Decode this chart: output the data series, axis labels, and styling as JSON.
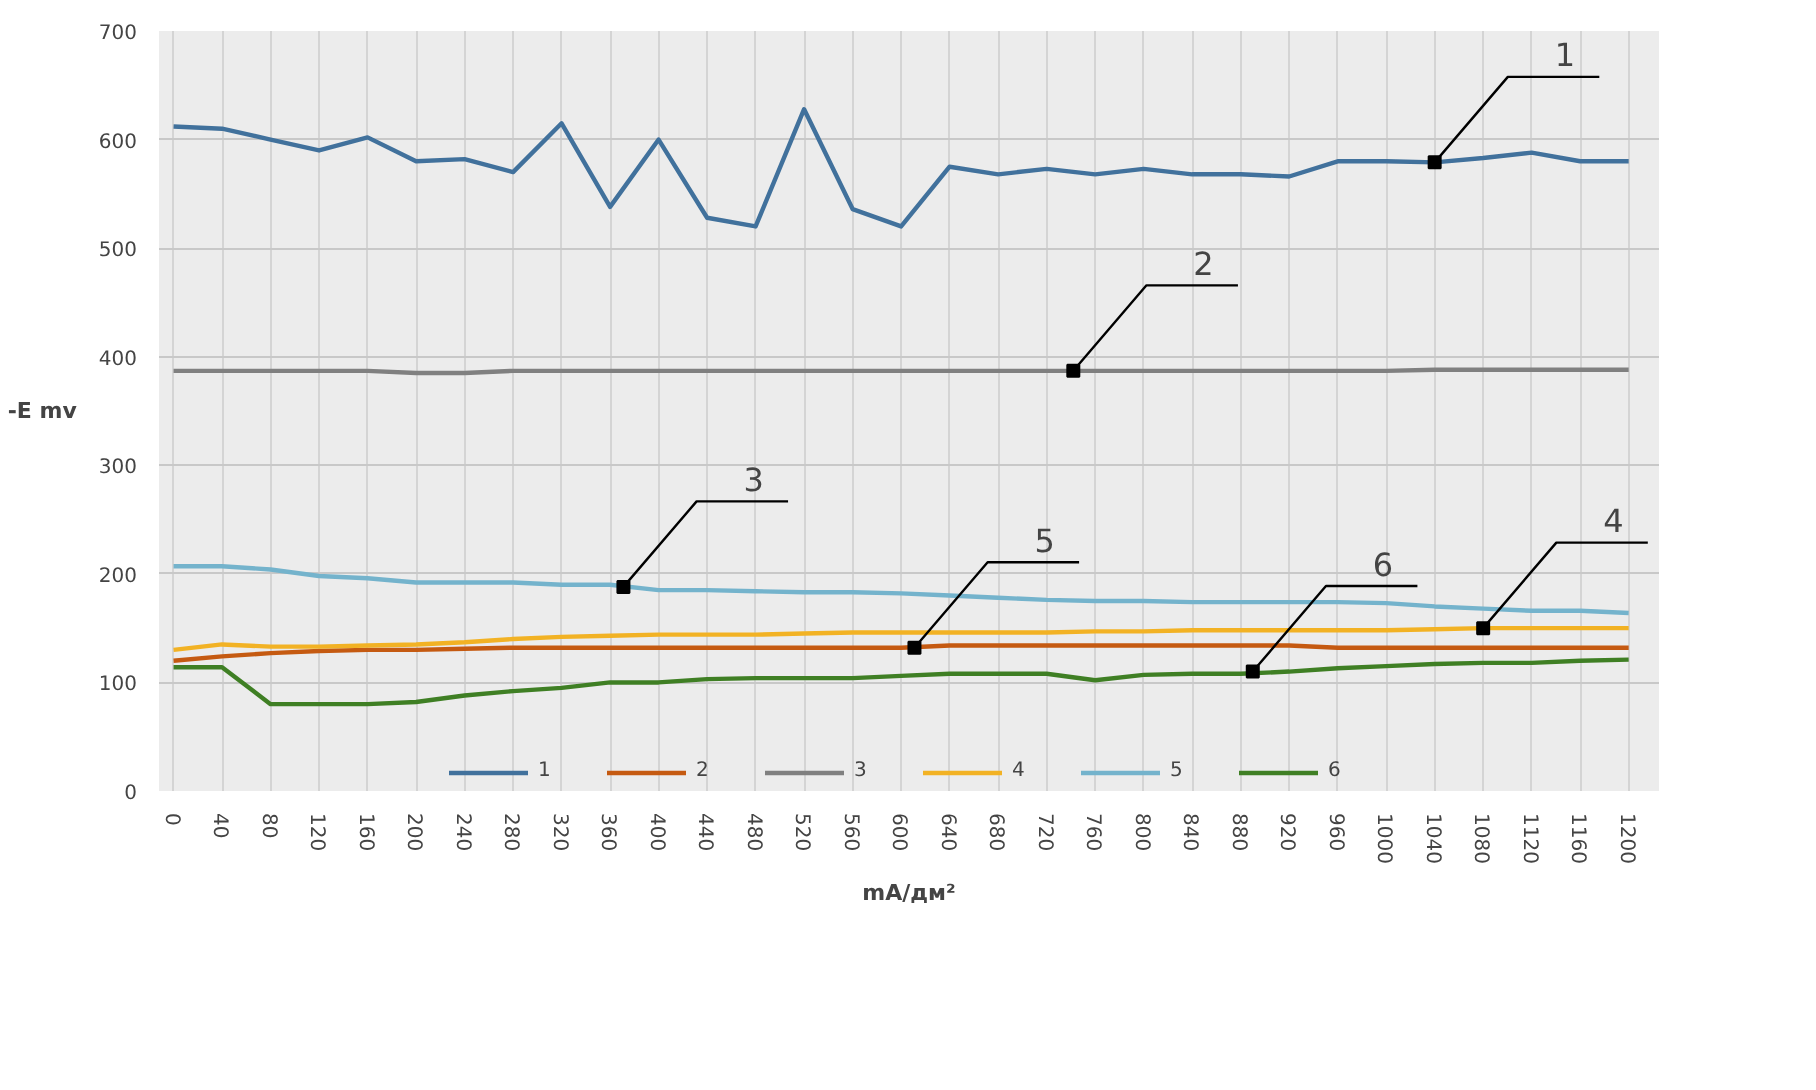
{
  "chart_data": {
    "type": "line",
    "xlabel": "mA/дм²",
    "ylabel": "-E mv",
    "x": [
      0,
      40,
      80,
      120,
      160,
      200,
      240,
      280,
      320,
      360,
      400,
      440,
      480,
      520,
      560,
      600,
      640,
      680,
      720,
      760,
      800,
      840,
      880,
      920,
      960,
      1000,
      1040,
      1080,
      1120,
      1160,
      1200
    ],
    "xlim": [
      -12,
      1225
    ],
    "xticks": [
      0,
      40,
      80,
      120,
      160,
      200,
      240,
      280,
      320,
      360,
      400,
      440,
      480,
      520,
      560,
      600,
      640,
      680,
      720,
      760,
      800,
      840,
      880,
      920,
      960,
      1000,
      1040,
      1080,
      1120,
      1160,
      1200
    ],
    "ylim": [
      0,
      700
    ],
    "yticks": [
      0,
      100,
      200,
      300,
      400,
      500,
      600,
      700
    ],
    "grid": true,
    "legend": "bottom",
    "marker": "none",
    "line_style": "solid",
    "series": [
      {
        "name": "1",
        "color": "#41719c",
        "values": [
          612,
          610,
          600,
          590,
          602,
          580,
          582,
          570,
          615,
          538,
          600,
          528,
          520,
          628,
          536,
          520,
          575,
          568,
          573,
          568,
          573,
          568,
          568,
          566,
          580,
          580,
          579,
          583,
          588,
          580,
          580
        ]
      },
      {
        "name": "2",
        "color": "#c55a11",
        "values": [
          120,
          124,
          127,
          129,
          130,
          130,
          131,
          132,
          132,
          132,
          132,
          132,
          132,
          132,
          132,
          132,
          134,
          134,
          134,
          134,
          134,
          134,
          134,
          134,
          132,
          132,
          132,
          132,
          132,
          132,
          132
        ]
      },
      {
        "name": "3",
        "color": "#808080",
        "values": [
          387,
          387,
          387,
          387,
          387,
          385,
          385,
          387,
          387,
          387,
          387,
          387,
          387,
          387,
          387,
          387,
          387,
          387,
          387,
          387,
          387,
          387,
          387,
          387,
          387,
          387,
          388,
          388,
          388,
          388,
          388
        ]
      },
      {
        "name": "4",
        "color": "#f2b224",
        "values": [
          130,
          135,
          133,
          133,
          134,
          135,
          137,
          140,
          142,
          143,
          144,
          144,
          144,
          145,
          146,
          146,
          146,
          146,
          146,
          147,
          147,
          148,
          148,
          148,
          148,
          148,
          149,
          150,
          150,
          150,
          150
        ]
      },
      {
        "name": "5",
        "color": "#74b3cc",
        "values": [
          207,
          207,
          204,
          198,
          196,
          192,
          192,
          192,
          190,
          190,
          185,
          185,
          184,
          183,
          183,
          182,
          180,
          178,
          176,
          175,
          175,
          174,
          174,
          174,
          174,
          173,
          170,
          168,
          166,
          166,
          164
        ]
      },
      {
        "name": "6",
        "color": "#3f7f24",
        "values": [
          114,
          114,
          80,
          80,
          80,
          82,
          88,
          92,
          95,
          100,
          100,
          103,
          104,
          104,
          104,
          106,
          108,
          108,
          108,
          102,
          107,
          108,
          108,
          110,
          113,
          115,
          117,
          118,
          118,
          120,
          121
        ]
      }
    ],
    "annotations": [
      {
        "text": "1",
        "x": 1040,
        "y": 579
      },
      {
        "text": "2",
        "x": 742,
        "y": 387
      },
      {
        "text": "3",
        "x": 371,
        "y": 188
      },
      {
        "text": "5",
        "x": 611,
        "y": 132
      },
      {
        "text": "6",
        "x": 890,
        "y": 110
      },
      {
        "text": "4",
        "x": 1080,
        "y": 150
      }
    ]
  }
}
